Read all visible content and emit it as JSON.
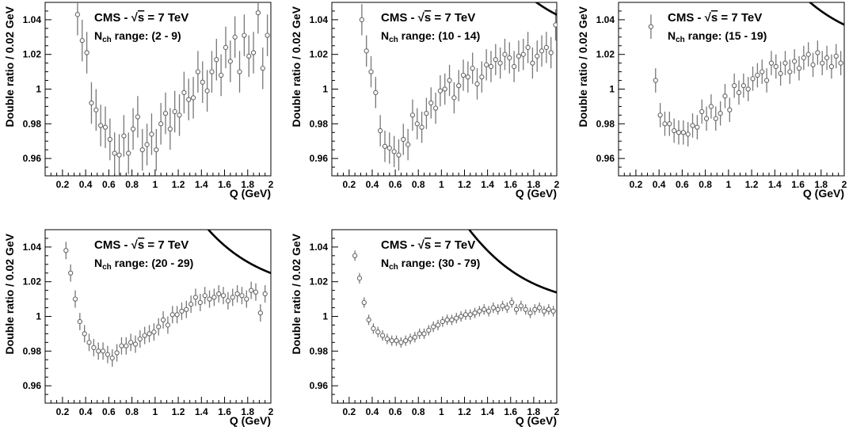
{
  "chart_data": [
    {
      "type": "scatter",
      "title": "CMS - √s = 7 TeV",
      "title_parts": {
        "prefix": "CMS - ",
        "radical": "√",
        "radicand": "s",
        "suffix": " = 7 TeV"
      },
      "range_label": {
        "main": "N",
        "sub": "ch",
        "rest": " range: (2 - 9)"
      },
      "xlabel": "Q (GeV)",
      "ylabel": "Double ratio / 0.02 GeV",
      "xlim": [
        0.05,
        2.0
      ],
      "ylim": [
        0.95,
        1.05
      ],
      "xticks": [
        "0.2",
        "0.4",
        "0.6",
        "0.8",
        "1",
        "1.2",
        "1.4",
        "1.6",
        "1.8",
        "2"
      ],
      "yticks": [
        "0.96",
        "0.98",
        "1",
        "1.02",
        "1.04"
      ],
      "fit": {
        "C": 1.034,
        "L": 0.95,
        "R": 1.8,
        "eps": 0.0,
        "q0": 0.8,
        "dmin": 0.0695,
        "sig": 0.38
      },
      "series": [
        {
          "x": [
            0.33,
            0.37,
            0.41,
            0.45,
            0.49,
            0.53,
            0.57,
            0.61,
            0.65,
            0.69,
            0.73,
            0.77,
            0.81,
            0.85,
            0.89,
            0.93,
            0.97,
            1.01,
            1.05,
            1.09,
            1.13,
            1.17,
            1.21,
            1.25,
            1.29,
            1.33,
            1.37,
            1.41,
            1.45,
            1.49,
            1.53,
            1.57,
            1.61,
            1.65,
            1.69,
            1.73,
            1.77,
            1.81,
            1.85,
            1.89,
            1.93,
            1.97
          ],
          "y": [
            1.043,
            1.028,
            1.021,
            0.992,
            0.988,
            0.979,
            0.978,
            0.971,
            0.963,
            0.962,
            0.973,
            0.963,
            0.977,
            0.984,
            0.965,
            0.968,
            0.974,
            0.965,
            0.98,
            0.986,
            0.977,
            0.987,
            0.985,
            0.998,
            0.994,
            0.995,
            1.01,
            1.004,
            0.999,
            1.01,
            1.017,
            1.008,
            1.024,
            1.016,
            1.03,
            1.01,
            1.031,
            1.019,
            1.021,
            1.044,
            1.012,
            1.031
          ],
          "err": [
            0.012
          ]
        }
      ]
    },
    {
      "type": "scatter",
      "title": "CMS - √s = 7 TeV",
      "title_parts": {
        "prefix": "CMS - ",
        "radical": "√",
        "radicand": "s",
        "suffix": " = 7 TeV"
      },
      "range_label": {
        "main": "N",
        "sub": "ch",
        "rest": " range: (10 - 14)"
      },
      "xlabel": "Q (GeV)",
      "ylabel": "Double ratio / 0.02 GeV",
      "xlim": [
        0.05,
        2.0
      ],
      "ylim": [
        0.95,
        1.05
      ],
      "xticks": [
        "0.2",
        "0.4",
        "0.6",
        "0.8",
        "1",
        "1.2",
        "1.4",
        "1.6",
        "1.8",
        "2"
      ],
      "yticks": [
        "0.96",
        "0.98",
        "1",
        "1.02",
        "1.04"
      ],
      "fit": {
        "C": 1.025,
        "L": 0.78,
        "R": 1.9,
        "eps": 0.0,
        "q0": 0.68,
        "dmin": 0.056,
        "sig": 0.36
      },
      "series": [
        {
          "x": [
            0.31,
            0.35,
            0.39,
            0.43,
            0.47,
            0.51,
            0.55,
            0.59,
            0.63,
            0.67,
            0.71,
            0.75,
            0.79,
            0.83,
            0.87,
            0.91,
            0.95,
            0.99,
            1.03,
            1.07,
            1.11,
            1.15,
            1.19,
            1.23,
            1.27,
            1.31,
            1.35,
            1.39,
            1.43,
            1.47,
            1.51,
            1.55,
            1.59,
            1.63,
            1.67,
            1.71,
            1.75,
            1.79,
            1.83,
            1.87,
            1.91,
            1.95,
            1.99
          ],
          "y": [
            1.04,
            1.022,
            1.01,
            0.998,
            0.976,
            0.967,
            0.966,
            0.964,
            0.962,
            0.971,
            0.968,
            0.985,
            0.98,
            0.978,
            0.986,
            0.992,
            0.989,
            0.999,
            1.0,
            1.005,
            0.995,
            1.002,
            1.008,
            1.007,
            1.012,
            1.003,
            1.007,
            1.014,
            1.013,
            1.017,
            1.015,
            1.02,
            1.018,
            1.013,
            1.019,
            1.02,
            1.024,
            1.015,
            1.019,
            1.022,
            1.024,
            1.021,
            1.037
          ],
          "err": [
            0.009
          ]
        }
      ]
    },
    {
      "type": "scatter",
      "title": "CMS - √s = 7 TeV",
      "title_parts": {
        "prefix": "CMS - ",
        "radical": "√",
        "radicand": "s",
        "suffix": " = 7 TeV"
      },
      "range_label": {
        "main": "N",
        "sub": "ch",
        "rest": " range: (15 - 19)"
      },
      "xlabel": "Q (GeV)",
      "ylabel": "Double ratio / 0.02 GeV",
      "xlim": [
        0.05,
        2.0
      ],
      "ylim": [
        0.95,
        1.05
      ],
      "xticks": [
        "0.2",
        "0.4",
        "0.6",
        "0.8",
        "1",
        "1.2",
        "1.4",
        "1.6",
        "1.8",
        "2"
      ],
      "yticks": [
        "0.96",
        "0.98",
        "1",
        "1.02",
        "1.04"
      ],
      "fit": {
        "C": 1.02,
        "L": 0.75,
        "R": 1.9,
        "eps": 0.0,
        "q0": 0.62,
        "dmin": 0.046,
        "sig": 0.38
      },
      "series": [
        {
          "x": [
            0.33,
            0.37,
            0.41,
            0.45,
            0.49,
            0.53,
            0.57,
            0.61,
            0.65,
            0.69,
            0.73,
            0.77,
            0.81,
            0.85,
            0.89,
            0.93,
            0.97,
            1.01,
            1.05,
            1.09,
            1.13,
            1.17,
            1.21,
            1.25,
            1.29,
            1.33,
            1.37,
            1.41,
            1.45,
            1.49,
            1.53,
            1.57,
            1.61,
            1.65,
            1.69,
            1.73,
            1.77,
            1.81,
            1.85,
            1.89,
            1.93,
            1.97
          ],
          "y": [
            1.036,
            1.005,
            0.985,
            0.98,
            0.98,
            0.976,
            0.975,
            0.975,
            0.974,
            0.979,
            0.978,
            0.987,
            0.983,
            0.99,
            0.983,
            0.986,
            0.996,
            0.988,
            1.002,
            0.998,
            1.002,
            1.0,
            1.006,
            1.008,
            1.01,
            1.005,
            1.015,
            1.013,
            1.009,
            1.015,
            1.01,
            1.016,
            1.012,
            1.018,
            1.02,
            1.014,
            1.021,
            1.015,
            1.018,
            1.013,
            1.019,
            1.015
          ],
          "err": [
            0.007
          ]
        }
      ]
    },
    {
      "type": "scatter",
      "title": "CMS - √s = 7 TeV",
      "title_parts": {
        "prefix": "CMS - ",
        "radical": "√",
        "radicand": "s",
        "suffix": " = 7 TeV"
      },
      "range_label": {
        "main": "N",
        "sub": "ch",
        "rest": " range: (20 - 29)"
      },
      "xlabel": "Q (GeV)",
      "ylabel": "Double ratio / 0.02 GeV",
      "xlim": [
        0.05,
        2.0
      ],
      "ylim": [
        0.95,
        1.05
      ],
      "xticks": [
        "0.2",
        "0.4",
        "0.6",
        "0.8",
        "1",
        "1.2",
        "1.4",
        "1.6",
        "1.8",
        "2"
      ],
      "yticks": [
        "0.96",
        "0.98",
        "1",
        "1.02",
        "1.04"
      ],
      "fit": {
        "C": 1.012,
        "L": 0.7,
        "R": 2.0,
        "eps": 0.0,
        "q0": 0.62,
        "dmin": 0.032,
        "sig": 0.37
      },
      "series": [
        {
          "x": [
            0.23,
            0.27,
            0.31,
            0.35,
            0.39,
            0.43,
            0.47,
            0.51,
            0.55,
            0.59,
            0.63,
            0.67,
            0.71,
            0.75,
            0.79,
            0.83,
            0.87,
            0.91,
            0.95,
            0.99,
            1.03,
            1.07,
            1.11,
            1.15,
            1.19,
            1.23,
            1.27,
            1.31,
            1.35,
            1.39,
            1.43,
            1.47,
            1.51,
            1.55,
            1.59,
            1.63,
            1.67,
            1.71,
            1.75,
            1.79,
            1.83,
            1.87,
            1.91,
            1.95
          ],
          "y": [
            1.038,
            1.025,
            1.01,
            0.997,
            0.99,
            0.985,
            0.982,
            0.98,
            0.98,
            0.978,
            0.976,
            0.979,
            0.983,
            0.983,
            0.985,
            0.984,
            0.987,
            0.989,
            0.99,
            0.991,
            0.994,
            0.998,
            0.995,
            1.001,
            1.001,
            1.003,
            1.004,
            1.007,
            1.011,
            1.008,
            1.012,
            1.01,
            1.011,
            1.013,
            1.012,
            1.009,
            1.011,
            1.013,
            1.012,
            1.01,
            1.015,
            1.014,
            1.002,
            1.013
          ],
          "err": [
            0.005
          ]
        }
      ]
    },
    {
      "type": "scatter",
      "title": "CMS - √s = 7 TeV",
      "title_parts": {
        "prefix": "CMS - ",
        "radical": "√",
        "radicand": "s",
        "suffix": " = 7 TeV"
      },
      "range_label": {
        "main": "N",
        "sub": "ch",
        "rest": " range: (30 - 79)"
      },
      "xlabel": "Q (GeV)",
      "ylabel": "Double ratio / 0.02 GeV",
      "xlim": [
        0.05,
        2.0
      ],
      "ylim": [
        0.95,
        1.05
      ],
      "xticks": [
        "0.2",
        "0.4",
        "0.6",
        "0.8",
        "1",
        "1.2",
        "1.4",
        "1.6",
        "1.8",
        "2"
      ],
      "yticks": [
        "0.96",
        "0.98",
        "1",
        "1.02",
        "1.04"
      ],
      "fit": {
        "C": 1.004,
        "L": 0.65,
        "R": 2.1,
        "eps": 0.0,
        "q0": 0.66,
        "dmin": 0.0175,
        "sig": 0.4
      },
      "series": [
        {
          "x": [
            0.25,
            0.29,
            0.33,
            0.37,
            0.41,
            0.45,
            0.49,
            0.53,
            0.57,
            0.61,
            0.65,
            0.69,
            0.73,
            0.77,
            0.81,
            0.85,
            0.89,
            0.93,
            0.97,
            1.01,
            1.05,
            1.09,
            1.13,
            1.17,
            1.21,
            1.25,
            1.29,
            1.33,
            1.37,
            1.41,
            1.45,
            1.49,
            1.53,
            1.57,
            1.61,
            1.65,
            1.69,
            1.73,
            1.77,
            1.81,
            1.85,
            1.89,
            1.93,
            1.97
          ],
          "y": [
            1.035,
            1.022,
            1.008,
            0.998,
            0.993,
            0.991,
            0.989,
            0.987,
            0.986,
            0.986,
            0.985,
            0.986,
            0.987,
            0.988,
            0.99,
            0.99,
            0.992,
            0.994,
            0.995,
            0.997,
            0.998,
            0.998,
            0.999,
            1.0,
            1.001,
            1.001,
            1.002,
            1.003,
            1.004,
            1.003,
            1.005,
            1.004,
            1.006,
            1.005,
            1.008,
            1.004,
            1.006,
            1.004,
            1.002,
            1.004,
            1.005,
            1.003,
            1.004,
            1.003
          ],
          "err": [
            0.003
          ]
        }
      ]
    }
  ]
}
